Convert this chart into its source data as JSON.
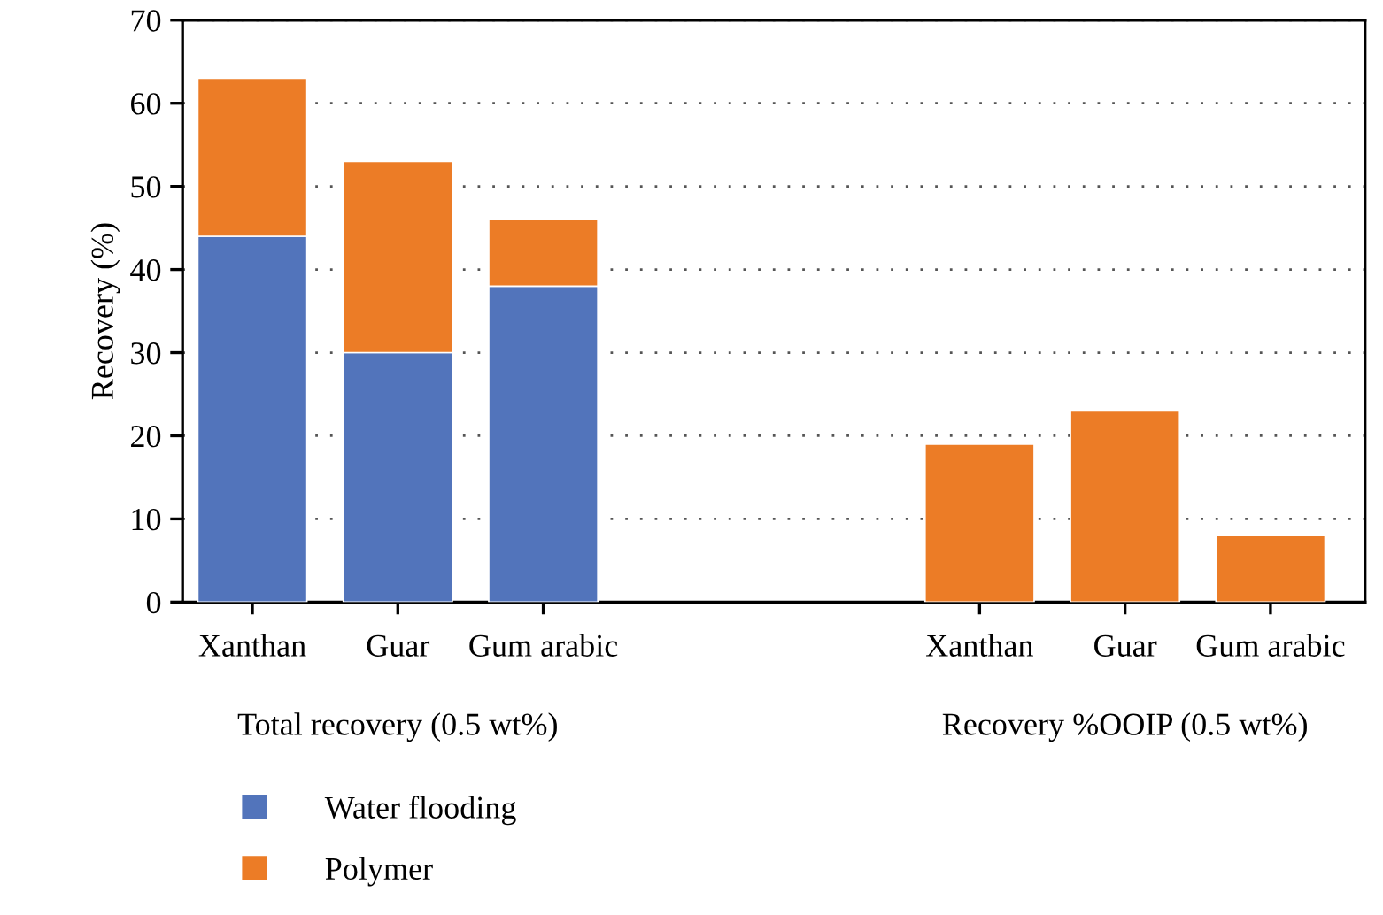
{
  "chart_data": {
    "type": "bar",
    "stacked": true,
    "ylabel": "Recovery (%)",
    "categories": [
      "Xanthan",
      "Guar",
      "Gum arabic",
      null,
      null,
      "Xanthan",
      "Guar",
      "Gum arabic"
    ],
    "series": [
      {
        "name": "Water flooding",
        "color": "#5274bb",
        "values": [
          44,
          30,
          38,
          null,
          null,
          null,
          null,
          null
        ]
      },
      {
        "name": "Polymer",
        "color": "#ec7c26",
        "values": [
          19,
          23,
          8,
          null,
          null,
          19,
          23,
          8
        ]
      }
    ],
    "annotations": [
      "Total recovery (0.5 wt%)",
      "Recovery %OOIP (0.5 wt%)"
    ],
    "ylim": [
      0,
      70
    ],
    "yticks": [
      0,
      10,
      20,
      30,
      40,
      50,
      60,
      70
    ],
    "grid": "y",
    "legend": "bottom"
  }
}
